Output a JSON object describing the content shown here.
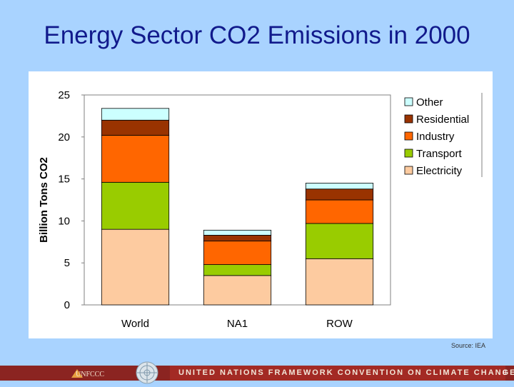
{
  "slide": {
    "title": "Energy Sector CO2 Emissions in 2000",
    "source": "Source: IEA",
    "page_number": "8"
  },
  "footer": {
    "org_name": "UNITED NATIONS FRAMEWORK CONVENTION ON CLIMATE CHANGE",
    "logo_text": "UNFCCC"
  },
  "chart_data": {
    "type": "bar",
    "stacked": true,
    "title": "",
    "xlabel": "",
    "ylabel": "Billion Tons CO2",
    "categories": [
      "World",
      "NA1",
      "ROW"
    ],
    "ylim": [
      0,
      25
    ],
    "yticks": [
      "0",
      "5",
      "10",
      "15",
      "20",
      "25"
    ],
    "grid": false,
    "legend_position": "top-right",
    "series": [
      {
        "name": "Electricity",
        "color": "#fdcba0",
        "values": [
          9.0,
          3.5,
          5.5
        ]
      },
      {
        "name": "Transport",
        "color": "#99cc00",
        "values": [
          5.6,
          1.3,
          4.2
        ]
      },
      {
        "name": "Industry",
        "color": "#ff6600",
        "values": [
          5.6,
          2.8,
          2.8
        ]
      },
      {
        "name": "Residential",
        "color": "#993300",
        "values": [
          1.8,
          0.7,
          1.3
        ]
      },
      {
        "name": "Other",
        "color": "#ccffff",
        "values": [
          1.4,
          0.6,
          0.7
        ]
      }
    ]
  }
}
